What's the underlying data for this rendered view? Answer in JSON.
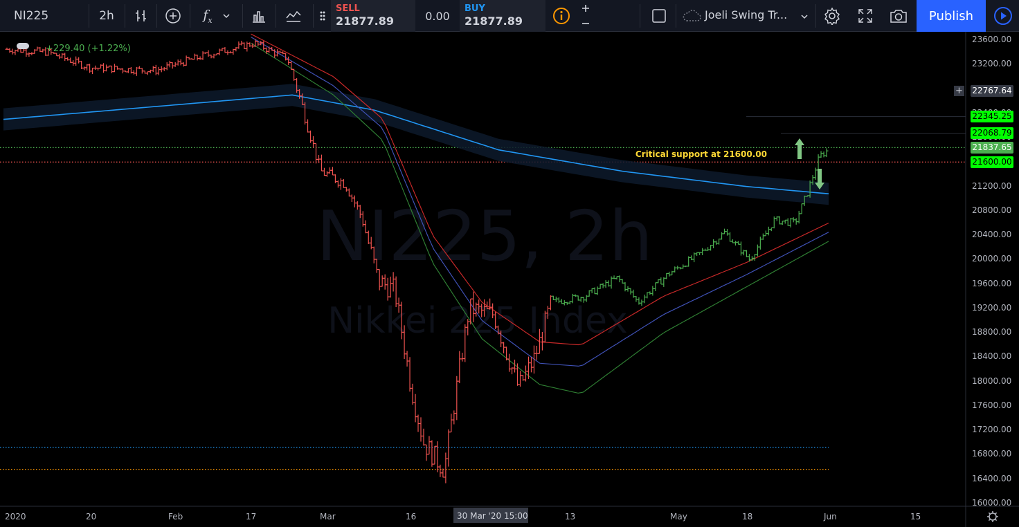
{
  "toolbar": {
    "symbol": "NI225",
    "interval": "2h",
    "sell_label": "SELL",
    "sell_price": "21877.89",
    "spread": "0.00",
    "buy_label": "BUY",
    "buy_price": "21877.89",
    "layout_name": "Joeli Swing Tr...",
    "publish_label": "Publish"
  },
  "watermark": {
    "line1": "NI225, 2h",
    "line2": "Nikkei 225 Index"
  },
  "change_text": "+229.40 (+1.22%)",
  "annotation": "Critical support at 21600.00",
  "crosshair_label": {
    "date": "30 Mar '20",
    "time": "15:00"
  },
  "price_tags": [
    {
      "value": "22767.64",
      "price": 22767.64,
      "bg": "#363a45",
      "fg": "#ffffff"
    },
    {
      "value": "22345.25",
      "price": 22345.25,
      "bg": "#00ff00",
      "fg": "#000000"
    },
    {
      "value": "22068.79",
      "price": 22068.79,
      "bg": "#00ff00",
      "fg": "#000000"
    },
    {
      "value": "21837.65",
      "price": 21837.65,
      "bg": "#4caf50",
      "fg": "#ffffff"
    },
    {
      "value": "21600.00",
      "price": 21600.0,
      "bg": "#00ff00",
      "fg": "#000000"
    }
  ],
  "colors": {
    "up": "#4caf50",
    "down": "#ef5350",
    "ma_blue": "#2196f3",
    "ma_red": "#c62828",
    "ma_green": "#2e7d32",
    "ma_navy": "#3f51b5"
  },
  "chart_data": {
    "type": "bar",
    "subtype": "ohlc-price-bars",
    "ylim": [
      15850,
      23850
    ],
    "y_ticks": [
      "23600.00",
      "23200.00",
      "22800.00",
      "22400.00",
      "22000.00",
      "21600.00",
      "21200.00",
      "20800.00",
      "20400.00",
      "20000.00",
      "19600.00",
      "19200.00",
      "18800.00",
      "18400.00",
      "18000.00",
      "17600.00",
      "17200.00",
      "16800.00",
      "16400.00",
      "16000.00"
    ],
    "x_ticks": [
      "2020",
      "20",
      "Feb",
      "17",
      "Mar",
      "16",
      "13",
      "May",
      "18",
      "Jun",
      "15"
    ],
    "horizontal_levels": [
      {
        "price": 21600.0,
        "style": "dotted",
        "color": "#ef5350"
      },
      {
        "price": 21837.65,
        "style": "dotted",
        "color": "#4caf50"
      },
      {
        "price": 16920.0,
        "style": "dotted",
        "color": "#2196f3"
      },
      {
        "price": 16560.0,
        "style": "dotted",
        "color": "#ff9800"
      }
    ],
    "price_path_anchors": [
      [
        0,
        23450
      ],
      [
        0.05,
        23400
      ],
      [
        0.1,
        23150
      ],
      [
        0.18,
        23100
      ],
      [
        0.24,
        23350
      ],
      [
        0.3,
        23550
      ],
      [
        0.34,
        23300
      ],
      [
        0.355,
        22650
      ],
      [
        0.38,
        21450
      ],
      [
        0.41,
        21250
      ],
      [
        0.43,
        20700
      ],
      [
        0.45,
        19650
      ],
      [
        0.47,
        19500
      ],
      [
        0.49,
        17900
      ],
      [
        0.505,
        17000
      ],
      [
        0.53,
        16550
      ],
      [
        0.545,
        17900
      ],
      [
        0.56,
        19200
      ],
      [
        0.59,
        19100
      ],
      [
        0.62,
        17900
      ],
      [
        0.64,
        18400
      ],
      [
        0.66,
        19300
      ],
      [
        0.7,
        19400
      ],
      [
        0.74,
        19700
      ],
      [
        0.765,
        19300
      ],
      [
        0.8,
        19750
      ],
      [
        0.84,
        20100
      ],
      [
        0.87,
        20450
      ],
      [
        0.9,
        20000
      ],
      [
        0.93,
        20650
      ],
      [
        0.955,
        20600
      ],
      [
        0.97,
        21100
      ],
      [
        0.985,
        21700
      ],
      [
        1,
        21840
      ]
    ],
    "moving_averages": [
      {
        "name": "",
        "color": "#2196f3",
        "points": [
          [
            0,
            22300
          ],
          [
            0.35,
            22700
          ],
          [
            0.45,
            22450
          ],
          [
            0.6,
            21800
          ],
          [
            0.75,
            21450
          ],
          [
            0.9,
            21200
          ],
          [
            1,
            21080
          ]
        ]
      },
      {
        "name": "",
        "color": "#c62828",
        "points": [
          [
            0.3,
            23700
          ],
          [
            0.4,
            23000
          ],
          [
            0.46,
            22300
          ],
          [
            0.52,
            20400
          ],
          [
            0.58,
            19300
          ],
          [
            0.65,
            18650
          ],
          [
            0.7,
            18600
          ],
          [
            0.8,
            19400
          ],
          [
            0.9,
            19950
          ],
          [
            1,
            20600
          ]
        ]
      },
      {
        "name": "",
        "color": "#3f51b5",
        "points": [
          [
            0.3,
            23650
          ],
          [
            0.4,
            22850
          ],
          [
            0.46,
            22150
          ],
          [
            0.52,
            20200
          ],
          [
            0.58,
            19000
          ],
          [
            0.65,
            18300
          ],
          [
            0.7,
            18250
          ],
          [
            0.8,
            19100
          ],
          [
            0.9,
            19750
          ],
          [
            1,
            20450
          ]
        ]
      },
      {
        "name": "",
        "color": "#2e7d32",
        "points": [
          [
            0.3,
            23550
          ],
          [
            0.4,
            22700
          ],
          [
            0.46,
            21950
          ],
          [
            0.52,
            19950
          ],
          [
            0.58,
            18700
          ],
          [
            0.65,
            17950
          ],
          [
            0.7,
            17800
          ],
          [
            0.8,
            18800
          ],
          [
            0.9,
            19550
          ],
          [
            1,
            20300
          ]
        ]
      }
    ]
  }
}
